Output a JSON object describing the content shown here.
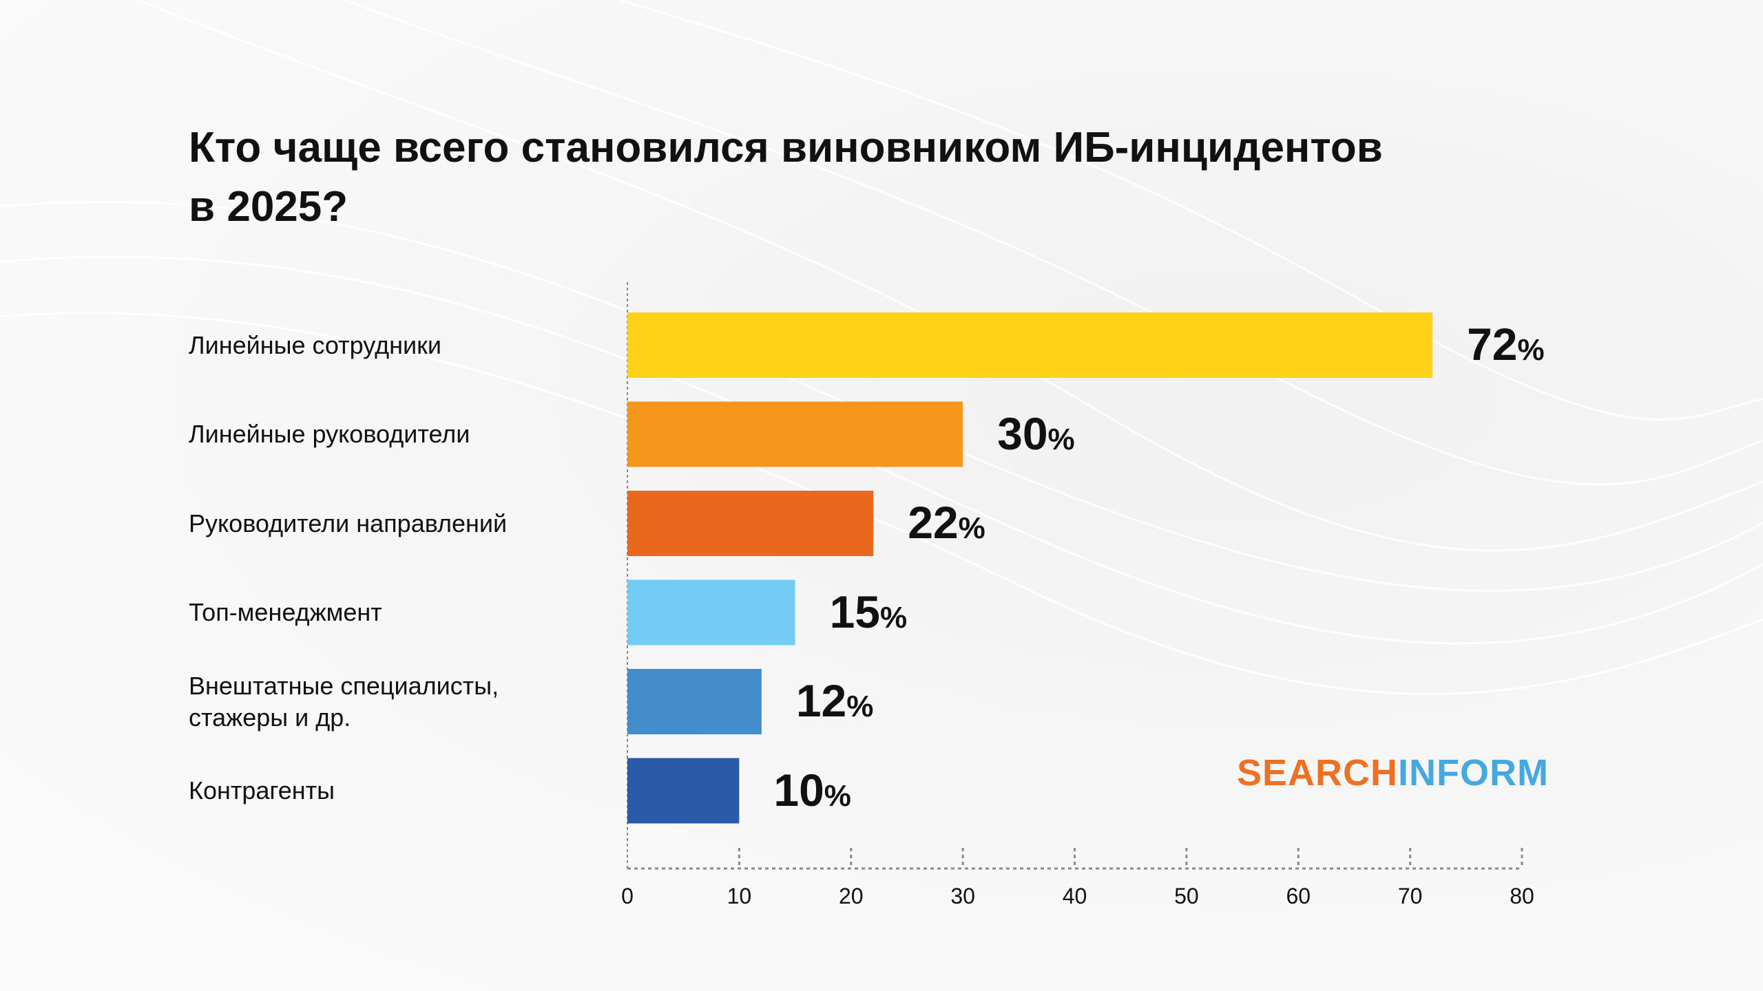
{
  "chart_data": {
    "type": "bar",
    "orientation": "horizontal",
    "title": "Кто чаще всего становился виновником ИБ-инцидентов в 2025?",
    "categories": [
      "Линейные сотрудники",
      "Линейные руководители",
      "Руководители направлений",
      "Топ-менеджмент",
      "Внештатные специалисты, стажеры и др.",
      "Контрагенты"
    ],
    "values": [
      72,
      30,
      22,
      15,
      12,
      10
    ],
    "value_labels": [
      "72",
      "30",
      "22",
      "15",
      "12",
      "10"
    ],
    "unit": "%",
    "colors": [
      "#fdd216",
      "#f6961d",
      "#ea671e",
      "#74cbf3",
      "#438dcc",
      "#2b5ba8"
    ],
    "xlim": [
      0,
      80
    ],
    "xticks": [
      "0",
      "10",
      "20",
      "30",
      "40",
      "50",
      "60",
      "70",
      "80"
    ],
    "xlabel": "",
    "ylabel": "",
    "grid": false,
    "legend": "none"
  },
  "title_line1": "Кто чаще всего становился виновником ИБ-инцидентов",
  "title_line2": "в 2025?",
  "category_lines": [
    [
      "Линейные сотрудники"
    ],
    [
      "Линейные руководители"
    ],
    [
      "Руководители направлений"
    ],
    [
      "Топ-менеджмент"
    ],
    [
      "Внештатные специалисты,",
      "стажеры и др."
    ],
    [
      "Контрагенты"
    ]
  ],
  "logo": {
    "part1": "SEARCH",
    "part2": "INFORM"
  }
}
